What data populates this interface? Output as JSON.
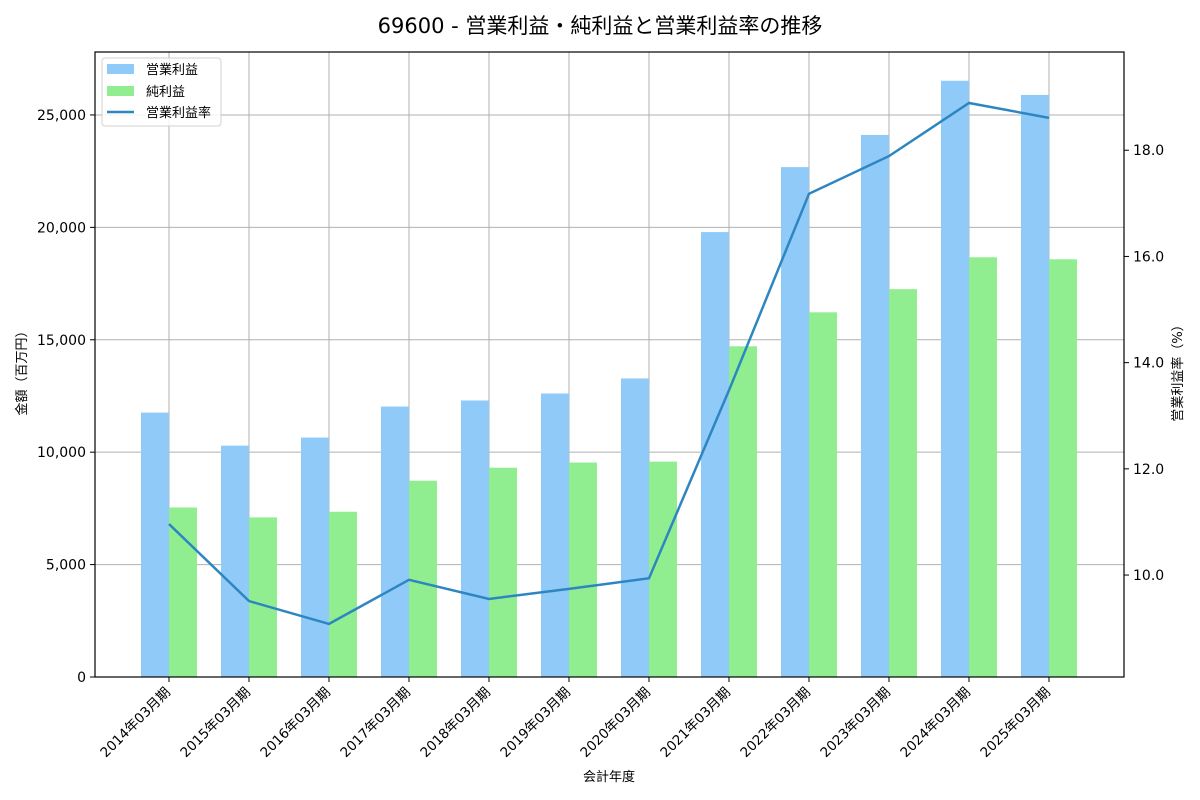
{
  "chart_data": {
    "type": "bar",
    "title": "69600 - 営業利益・純利益と営業利益率の推移",
    "xlabel": "会計年度",
    "ylabel": "金額（百万円）",
    "y2label": "営業利益率（%）",
    "categories": [
      "2014年03月期",
      "2015年03月期",
      "2016年03月期",
      "2017年03月期",
      "2018年03月期",
      "2019年03月期",
      "2020年03月期",
      "2021年03月期",
      "2022年03月期",
      "2023年03月期",
      "2024年03月期",
      "2025年03月期"
    ],
    "series": [
      {
        "name": "営業利益",
        "type": "bar",
        "axis": "left",
        "color": "#90caf9",
        "values": [
          11760,
          10290,
          10650,
          12030,
          12300,
          12610,
          13280,
          19790,
          22680,
          24110,
          26520,
          25890
        ]
      },
      {
        "name": "純利益",
        "type": "bar",
        "axis": "left",
        "color": "#90ee90",
        "values": [
          7540,
          7100,
          7350,
          8730,
          9310,
          9540,
          9580,
          14710,
          16220,
          17250,
          18670,
          18580
        ]
      },
      {
        "name": "営業利益率",
        "type": "line",
        "axis": "right",
        "color": "#2e86c1",
        "values": [
          10.96,
          9.51,
          9.08,
          9.91,
          9.55,
          9.74,
          9.94,
          13.48,
          17.18,
          17.89,
          18.89,
          18.61
        ]
      }
    ],
    "ylim": [
      0,
      27800
    ],
    "y2lim": [
      8.08,
      19.85
    ],
    "yticks": [
      0,
      5000,
      10000,
      15000,
      20000,
      25000
    ],
    "ytick_labels": [
      "0",
      "5,000",
      "10,000",
      "15,000",
      "20,000",
      "25,000"
    ],
    "y2ticks": [
      10.0,
      12.0,
      14.0,
      16.0,
      18.0
    ],
    "y2tick_labels": [
      "10.0",
      "12.0",
      "14.0",
      "16.0",
      "18.0"
    ],
    "grid": true,
    "legend_position": "upper left"
  }
}
